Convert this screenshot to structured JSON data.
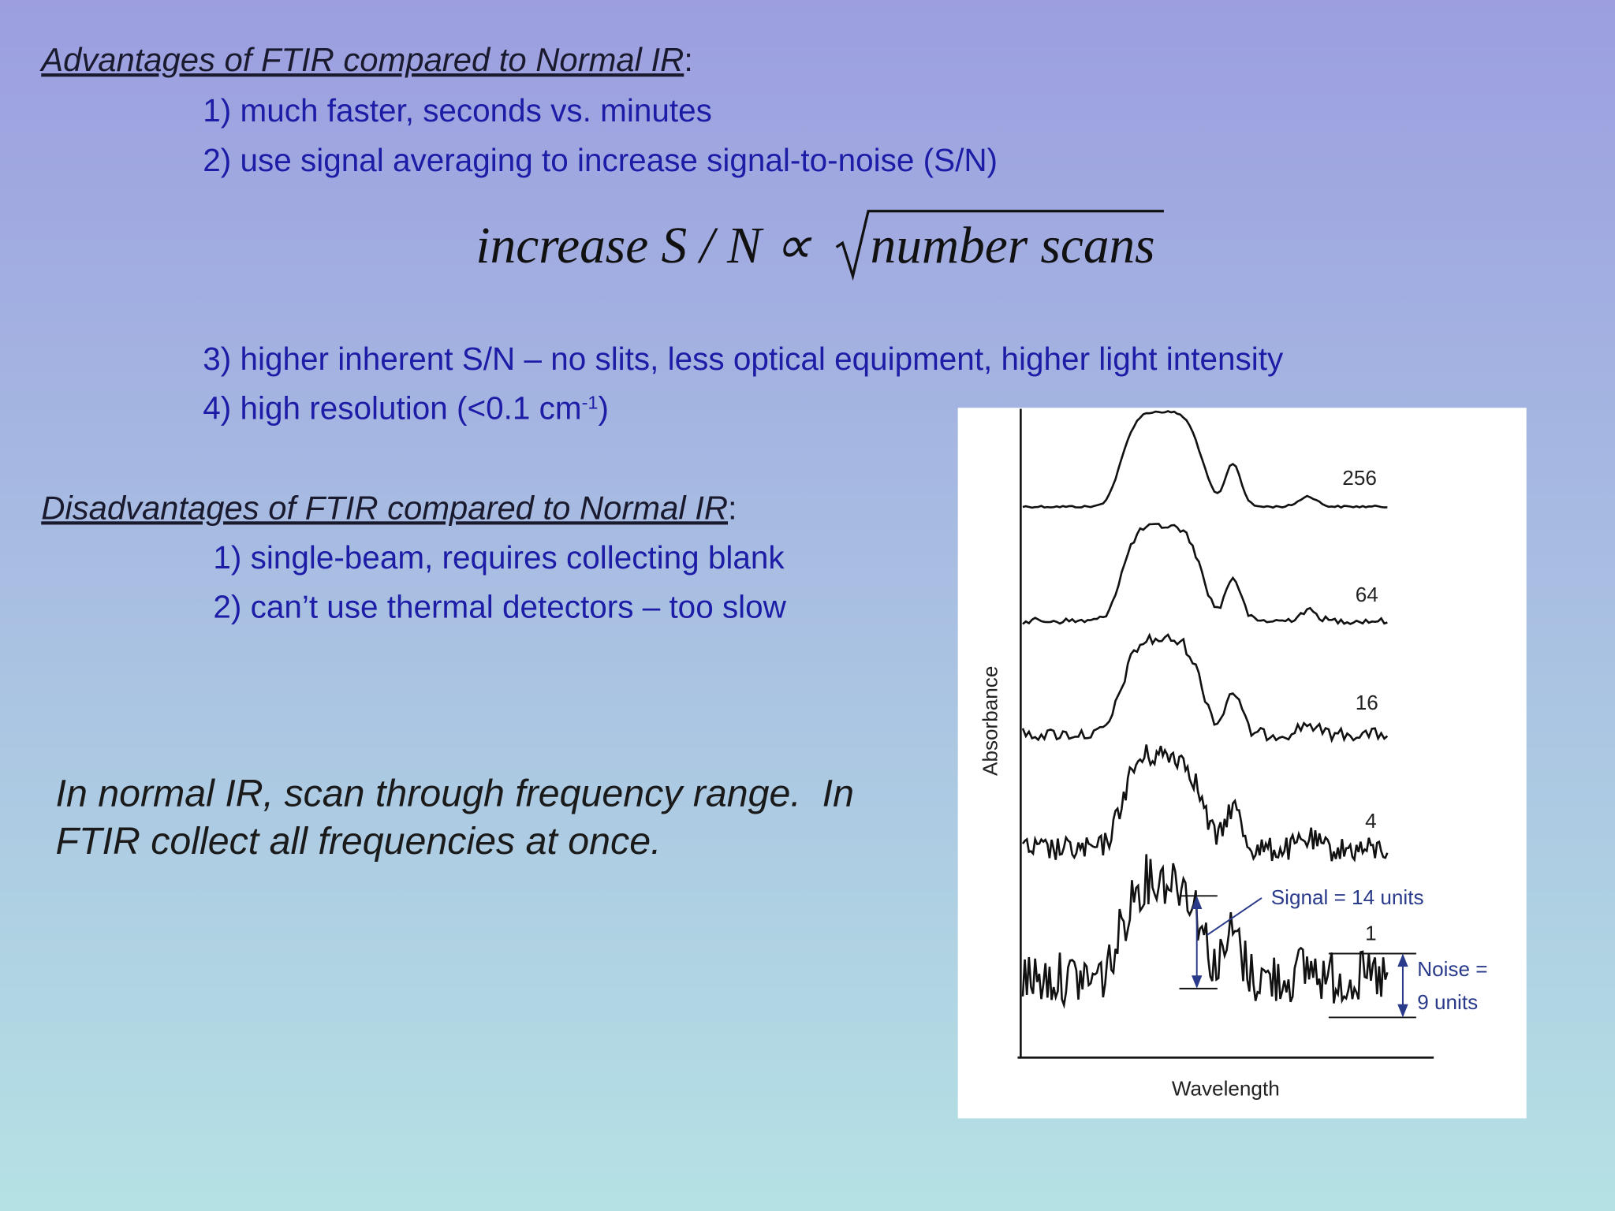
{
  "advantages": {
    "heading": "Advantages of FTIR compared to Normal IR",
    "heading_suffix": ":",
    "items": [
      "1) much faster, seconds vs. minutes",
      "2) use signal averaging to increase signal-to-noise (S/N)",
      "3) higher inherent S/N – no slits, less optical equipment, higher light intensity"
    ],
    "resolution_item": {
      "text": "4) high resolution (<0.1 cm",
      "sup": "-1",
      "after": ")"
    }
  },
  "formula": {
    "left": "increase S / N ∝",
    "radicand": "number scans"
  },
  "disadvantages": {
    "heading": "Disadvantages of FTIR compared to Normal IR",
    "heading_suffix": ":",
    "items": [
      "1) single-beam, requires collecting blank",
      "2) can’t use thermal detectors – too slow"
    ]
  },
  "note": [
    "In normal IR, scan through frequency range.  In",
    "FTIR collect all frequencies at once."
  ],
  "figure": {
    "y_label": "Absorbance",
    "x_label": "Wavelength",
    "scan_labels": [
      "256",
      "64",
      "16",
      "4",
      "1"
    ],
    "signal_label": "Signal = 14 units",
    "noise_label": [
      "Noise =",
      "9 units"
    ]
  }
}
